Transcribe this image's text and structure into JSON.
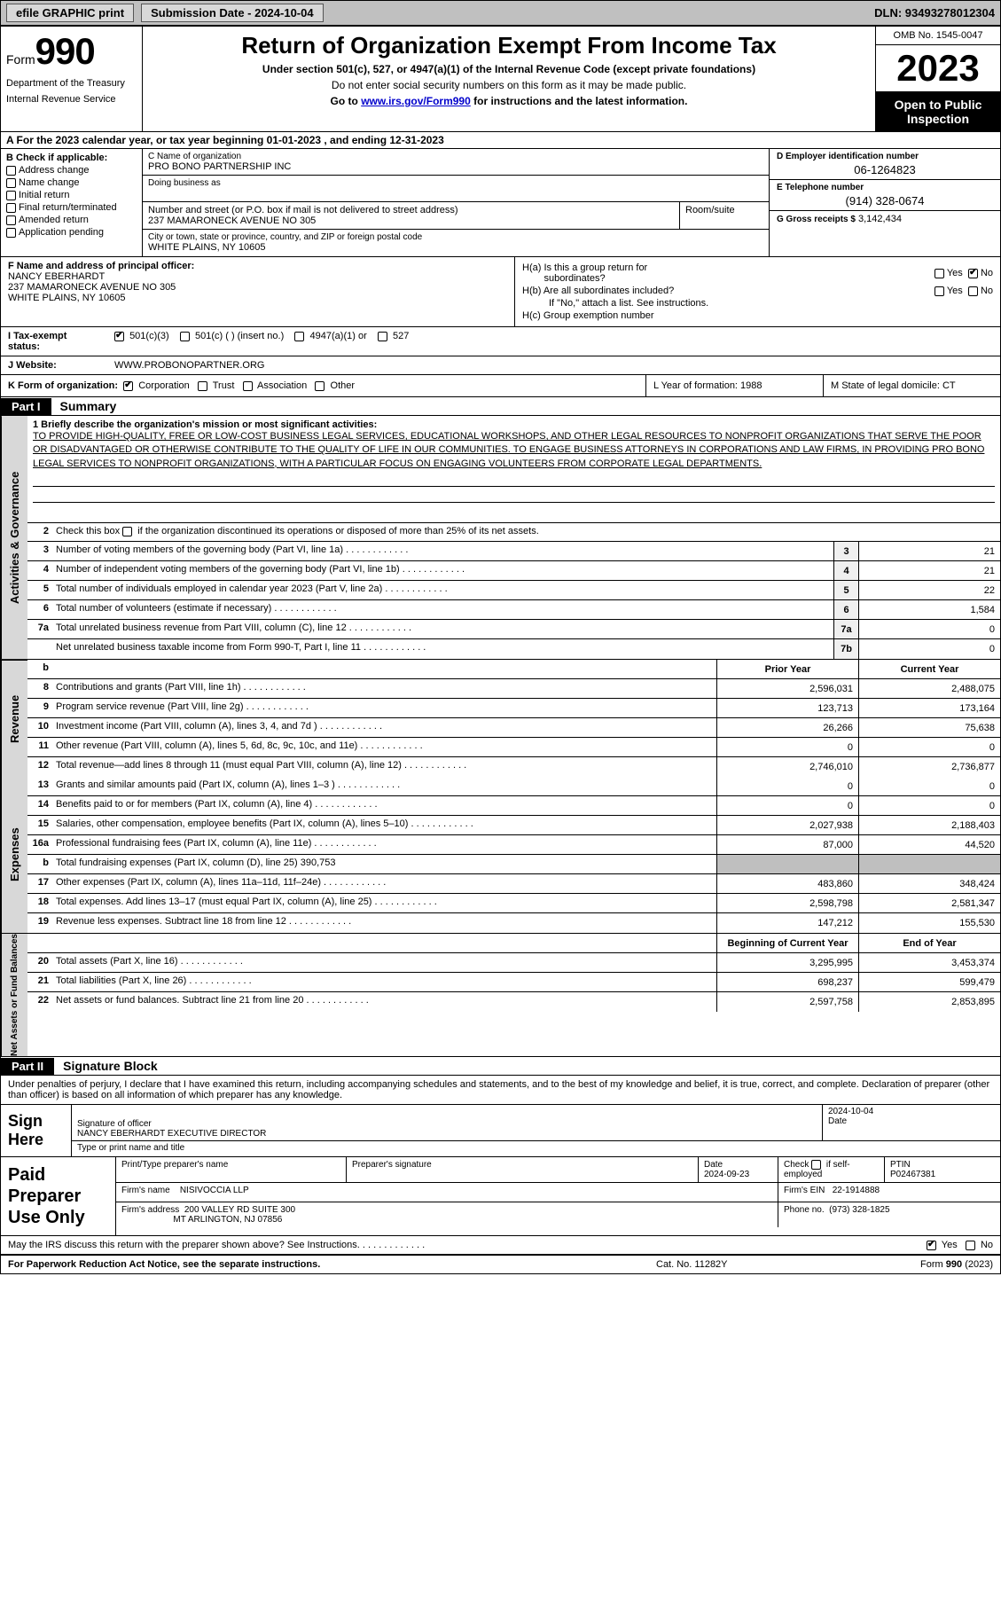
{
  "topbar": {
    "efile": "efile GRAPHIC print",
    "submission_label": "Submission Date - 2024-10-04",
    "dln": "DLN: 93493278012304"
  },
  "header": {
    "form_prefix": "Form",
    "form_number": "990",
    "title": "Return of Organization Exempt From Income Tax",
    "subtitle": "Under section 501(c), 527, or 4947(a)(1) of the Internal Revenue Code (except private foundations)",
    "note": "Do not enter social security numbers on this form as it may be made public.",
    "cmd": "Go to www.irs.gov/Form990 for instructions and the latest information.",
    "cmd_prefix": "Go to ",
    "cmd_link": "www.irs.gov/Form990",
    "cmd_suffix": " for instructions and the latest information.",
    "dept1": "Department of the Treasury",
    "dept2": "Internal Revenue Service",
    "omb": "OMB No. 1545-0047",
    "year": "2023",
    "inspection1": "Open to Public",
    "inspection2": "Inspection"
  },
  "lineA": "A  For the 2023 calendar year, or tax year beginning 01-01-2023    , and ending 12-31-2023",
  "boxB": {
    "label": "B Check if applicable:",
    "items": [
      "Address change",
      "Name change",
      "Initial return",
      "Final return/terminated",
      "Amended return",
      "Application pending"
    ]
  },
  "boxC": {
    "name_label": "C Name of organization",
    "name": "PRO BONO PARTNERSHIP INC",
    "dba_label": "Doing business as",
    "dba": "",
    "addr_label": "Number and street (or P.O. box if mail is not delivered to street address)",
    "addr": "237 MAMARONECK AVENUE NO 305",
    "room_label": "Room/suite",
    "city_label": "City or town, state or province, country, and ZIP or foreign postal code",
    "city": "WHITE PLAINS, NY  10605"
  },
  "boxD": {
    "ein_label": "D Employer identification number",
    "ein": "06-1264823",
    "tel_label": "E Telephone number",
    "tel": "(914) 328-0674",
    "gross_label": "G Gross receipts $",
    "gross": "3,142,434"
  },
  "boxF": {
    "label": "F  Name and address of principal officer:",
    "name": "NANCY EBERHARDT",
    "addr1": "237 MAMARONECK AVENUE NO 305",
    "addr2": "WHITE PLAINS, NY  10605"
  },
  "boxH": {
    "a_label": "H(a)  Is this a group return for",
    "a_sub": "subordinates?",
    "b_label": "H(b)  Are all subordinates included?",
    "b_note": "If \"No,\" attach a list. See instructions.",
    "c_label": "H(c)  Group exemption number",
    "yes": "Yes",
    "no": "No"
  },
  "rowI": {
    "label": "I    Tax-exempt status:",
    "opt1": "501(c)(3)",
    "opt2": "501(c) (  ) (insert no.)",
    "opt3": "4947(a)(1) or",
    "opt4": "527"
  },
  "rowJ": {
    "label": "J    Website:",
    "value": "WWW.PROBONOPARTNER.ORG"
  },
  "rowK": {
    "label": "K Form of organization:",
    "opts": [
      "Corporation",
      "Trust",
      "Association",
      "Other"
    ],
    "L": "L Year of formation: 1988",
    "M": "M State of legal domicile: CT"
  },
  "part1": {
    "header": "Part I",
    "title": "Summary",
    "line1_label": "1   Briefly describe the organization's mission or most significant activities:",
    "mission": "TO PROVIDE HIGH-QUALITY, FREE OR LOW-COST BUSINESS LEGAL SERVICES, EDUCATIONAL WORKSHOPS, AND OTHER LEGAL RESOURCES TO NONPROFIT ORGANIZATIONS THAT SERVE THE POOR OR DISADVANTAGED OR OTHERWISE CONTRIBUTE TO THE QUALITY OF LIFE IN OUR COMMUNITIES. TO ENGAGE BUSINESS ATTORNEYS IN CORPORATIONS AND LAW FIRMS, IN PROVIDING PRO BONO LEGAL SERVICES TO NONPROFIT ORGANIZATIONS, WITH A PARTICULAR FOCUS ON ENGAGING VOLUNTEERS FROM CORPORATE LEGAL DEPARTMENTS.",
    "line2": "2   Check this box      if the organization discontinued its operations or disposed of more than 25% of its net assets.",
    "rows_top": [
      {
        "n": "3",
        "desc": "Number of voting members of the governing body (Part VI, line 1a)",
        "box": "3",
        "val": "21"
      },
      {
        "n": "4",
        "desc": "Number of independent voting members of the governing body (Part VI, line 1b)",
        "box": "4",
        "val": "21"
      },
      {
        "n": "5",
        "desc": "Total number of individuals employed in calendar year 2023 (Part V, line 2a)",
        "box": "5",
        "val": "22"
      },
      {
        "n": "6",
        "desc": "Total number of volunteers (estimate if necessary)",
        "box": "6",
        "val": "1,584"
      },
      {
        "n": "7a",
        "desc": "Total unrelated business revenue from Part VIII, column (C), line 12",
        "box": "7a",
        "val": "0"
      },
      {
        "n": "",
        "desc": "Net unrelated business taxable income from Form 990-T, Part I, line 11",
        "box": "7b",
        "val": "0"
      }
    ],
    "col_headers": {
      "prior": "Prior Year",
      "current": "Current Year",
      "b": "b",
      "boy": "Beginning of Current Year",
      "eoy": "End of Year"
    },
    "revenue": [
      {
        "n": "8",
        "desc": "Contributions and grants (Part VIII, line 1h)",
        "prior": "2,596,031",
        "curr": "2,488,075"
      },
      {
        "n": "9",
        "desc": "Program service revenue (Part VIII, line 2g)",
        "prior": "123,713",
        "curr": "173,164"
      },
      {
        "n": "10",
        "desc": "Investment income (Part VIII, column (A), lines 3, 4, and 7d )",
        "prior": "26,266",
        "curr": "75,638"
      },
      {
        "n": "11",
        "desc": "Other revenue (Part VIII, column (A), lines 5, 6d, 8c, 9c, 10c, and 11e)",
        "prior": "0",
        "curr": "0"
      },
      {
        "n": "12",
        "desc": "Total revenue—add lines 8 through 11 (must equal Part VIII, column (A), line 12)",
        "prior": "2,746,010",
        "curr": "2,736,877"
      }
    ],
    "expenses": [
      {
        "n": "13",
        "desc": "Grants and similar amounts paid (Part IX, column (A), lines 1–3 )",
        "prior": "0",
        "curr": "0"
      },
      {
        "n": "14",
        "desc": "Benefits paid to or for members (Part IX, column (A), line 4)",
        "prior": "0",
        "curr": "0"
      },
      {
        "n": "15",
        "desc": "Salaries, other compensation, employee benefits (Part IX, column (A), lines 5–10)",
        "prior": "2,027,938",
        "curr": "2,188,403"
      },
      {
        "n": "16a",
        "desc": "Professional fundraising fees (Part IX, column (A), line 11e)",
        "prior": "87,000",
        "curr": "44,520"
      },
      {
        "n": "b",
        "desc": "Total fundraising expenses (Part IX, column (D), line 25) 390,753",
        "prior": "",
        "curr": "",
        "shade": true
      },
      {
        "n": "17",
        "desc": "Other expenses (Part IX, column (A), lines 11a–11d, 11f–24e)",
        "prior": "483,860",
        "curr": "348,424"
      },
      {
        "n": "18",
        "desc": "Total expenses. Add lines 13–17 (must equal Part IX, column (A), line 25)",
        "prior": "2,598,798",
        "curr": "2,581,347"
      },
      {
        "n": "19",
        "desc": "Revenue less expenses. Subtract line 18 from line 12",
        "prior": "147,212",
        "curr": "155,530"
      }
    ],
    "net": [
      {
        "n": "20",
        "desc": "Total assets (Part X, line 16)",
        "prior": "3,295,995",
        "curr": "3,453,374"
      },
      {
        "n": "21",
        "desc": "Total liabilities (Part X, line 26)",
        "prior": "698,237",
        "curr": "599,479"
      },
      {
        "n": "22",
        "desc": "Net assets or fund balances. Subtract line 21 from line 20",
        "prior": "2,597,758",
        "curr": "2,853,895"
      }
    ]
  },
  "vtabs": {
    "gov": "Activities & Governance",
    "rev": "Revenue",
    "exp": "Expenses",
    "net": "Net Assets or Fund Balances"
  },
  "part2": {
    "header": "Part II",
    "title": "Signature Block",
    "decl": "Under penalties of perjury, I declare that I have examined this return, including accompanying schedules and statements, and to the best of my knowledge and belief, it is true, correct, and complete. Declaration of preparer (other than officer) is based on all information of which preparer has any knowledge."
  },
  "sign": {
    "label": "Sign Here",
    "sig_label": "Signature of officer",
    "officer": "NANCY EBERHARDT  EXECUTIVE DIRECTOR",
    "name_label": "Type or print name and title",
    "date": "2024-10-04",
    "date_label": "Date"
  },
  "paid": {
    "label": "Paid Preparer Use Only",
    "col_name": "Print/Type preparer's name",
    "col_sig": "Preparer's signature",
    "col_date": "Date",
    "date": "2024-09-23",
    "check_label": "Check        if self-employed",
    "ptin_label": "PTIN",
    "ptin": "P02467381",
    "firm_name_label": "Firm's name",
    "firm_name": "NISIVOCCIA LLP",
    "firm_ein_label": "Firm's EIN",
    "firm_ein": "22-1914888",
    "firm_addr_label": "Firm's address",
    "firm_addr1": "200 VALLEY RD SUITE 300",
    "firm_addr2": "MT ARLINGTON, NJ  07856",
    "phone_label": "Phone no.",
    "phone": "(973) 328-1825"
  },
  "discuss": {
    "q": "May the IRS discuss this return with the preparer shown above? See Instructions.",
    "yes": "Yes",
    "no": "No"
  },
  "footer": {
    "left": "For Paperwork Reduction Act Notice, see the separate instructions.",
    "mid": "Cat. No. 11282Y",
    "right_pre": "Form ",
    "right_form": "990",
    "right_post": " (2023)"
  },
  "colors": {
    "topbar": "#c0c0c0",
    "btn": "#d8d8d8",
    "vtab": "#d8d8d8",
    "shade": "#bfbfbf",
    "boxn": "#f0f0f0",
    "link": "#0000cc"
  }
}
